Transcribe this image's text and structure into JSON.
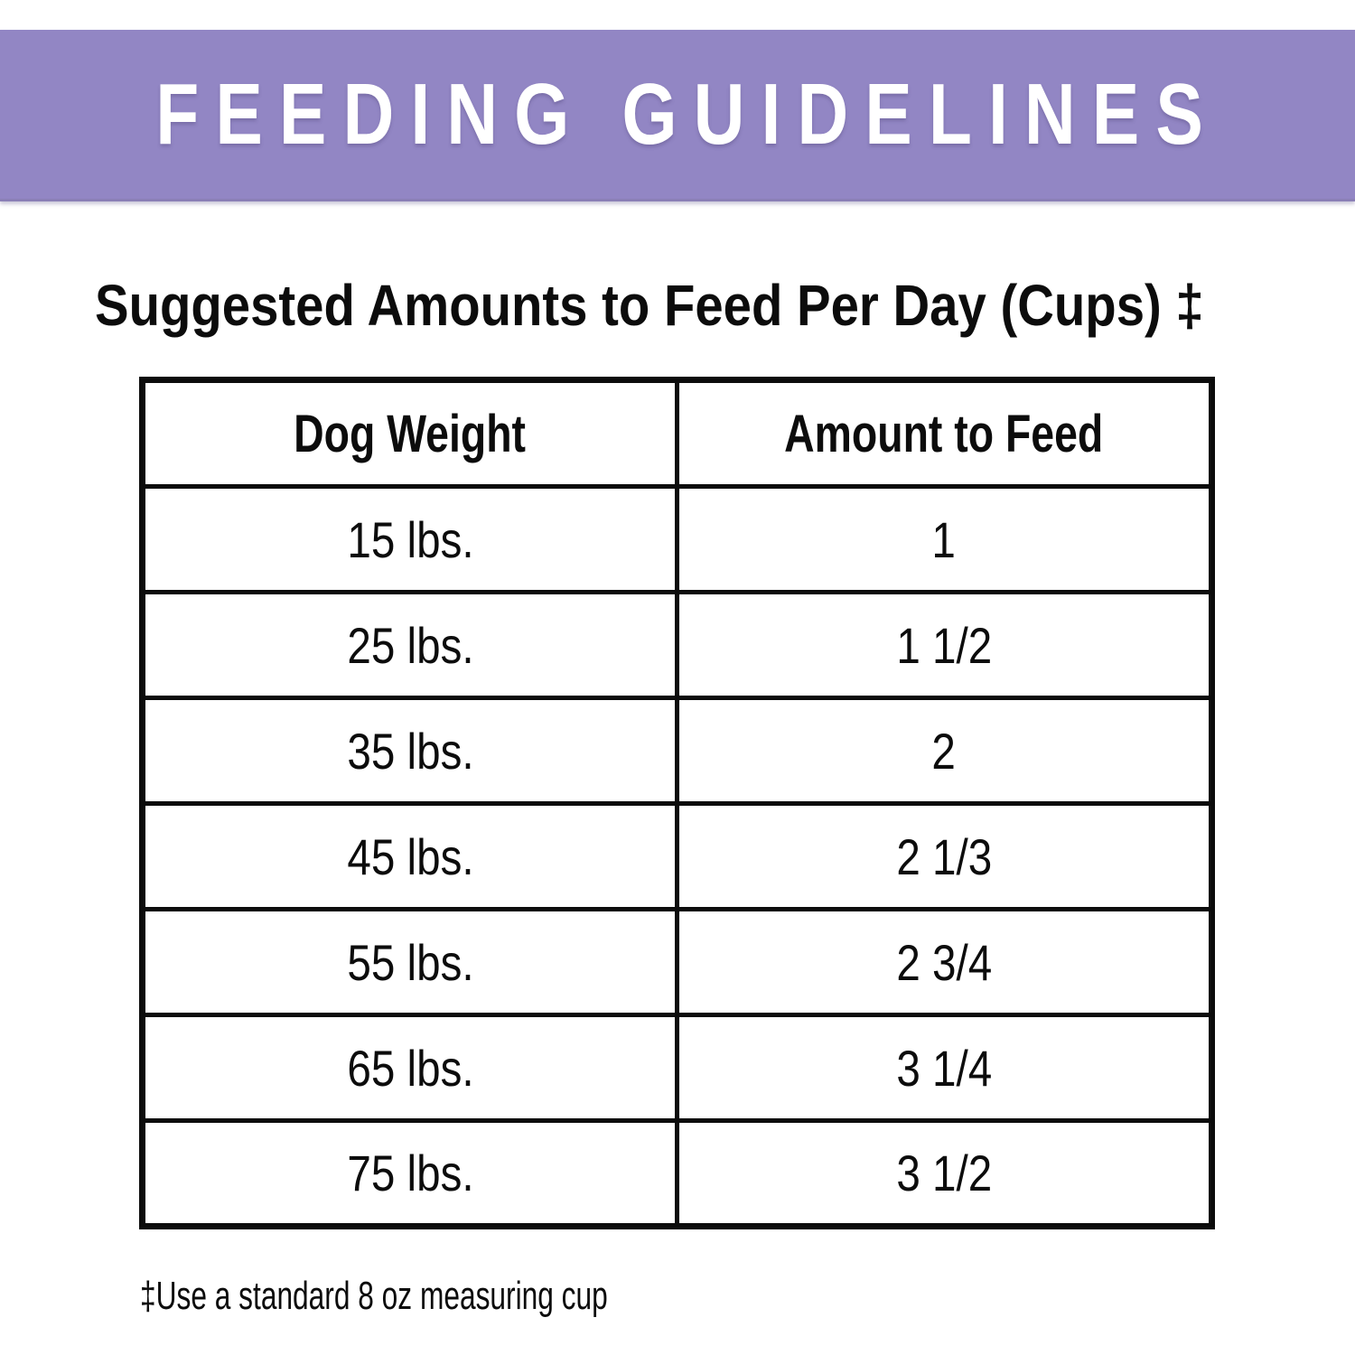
{
  "banner": {
    "title": "FEEDING GUIDELINES",
    "bg_color": "#9286C4",
    "text_color": "#FFFFFF"
  },
  "heading": {
    "text": "Suggested Amounts to Feed Per Day (Cups) ‡"
  },
  "table": {
    "columns": [
      "Dog Weight",
      "Amount to Feed"
    ],
    "rows": [
      {
        "weight": "15 lbs.",
        "amount": "1"
      },
      {
        "weight": "25 lbs.",
        "amount": "1 1/2"
      },
      {
        "weight": "35 lbs.",
        "amount": "2"
      },
      {
        "weight": "45 lbs.",
        "amount": "2 1/3"
      },
      {
        "weight": "55 lbs.",
        "amount": "2 3/4"
      },
      {
        "weight": "65 lbs.",
        "amount": "3 1/4"
      },
      {
        "weight": "75 lbs.",
        "amount": "3 1/2"
      }
    ]
  },
  "footnote": {
    "text": "‡Use a standard 8 oz measuring cup"
  },
  "colors": {
    "banner_bg": "#9286C4",
    "banner_text": "#FFFFFF",
    "text": "#0C0C0C",
    "border": "#0C0C0C",
    "page_bg": "#FFFFFF"
  }
}
